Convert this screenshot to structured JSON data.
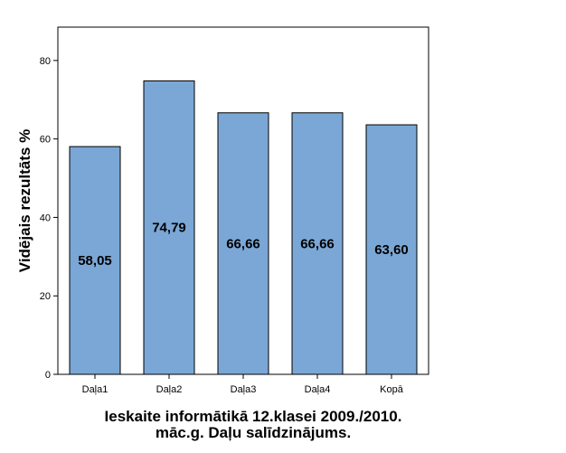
{
  "chart_data": {
    "type": "bar",
    "categories": [
      "Daļa1",
      "Daļa2",
      "Daļa3",
      "Daļa4",
      "Kopā"
    ],
    "values": [
      58.05,
      74.79,
      66.66,
      66.66,
      63.6
    ],
    "data_labels": [
      "58,05",
      "74,79",
      "66,66",
      "66,66",
      "63,60"
    ],
    "ylabel": "Vidējais rezultāts %",
    "xlabel_lines": [
      "Ieskaite informātikā 12.klasei 2009./2010.",
      "māc.g. Daļu salīdzinājums."
    ],
    "ylim": [
      0,
      88.5
    ],
    "yticks": [
      0,
      20,
      40,
      60,
      80
    ],
    "grid": false,
    "bar_color": "#7ba7d6",
    "edge_color": "#000000"
  }
}
